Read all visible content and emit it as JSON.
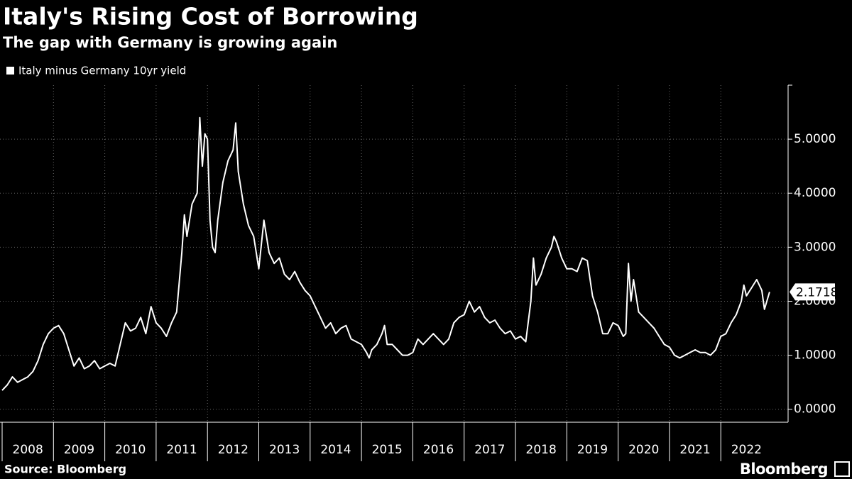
{
  "chart_data": {
    "type": "line",
    "title": "Italy's Rising Cost of Borrowing",
    "subtitle": "The gap with Germany is growing again",
    "source": "Source: Bloomberg",
    "brand": "Bloomberg",
    "x": [
      2008.0,
      2008.1,
      2008.2,
      2008.3,
      2008.4,
      2008.5,
      2008.6,
      2008.7,
      2008.8,
      2008.9,
      2009.0,
      2009.1,
      2009.2,
      2009.3,
      2009.4,
      2009.5,
      2009.6,
      2009.7,
      2009.8,
      2009.9,
      2010.0,
      2010.1,
      2010.2,
      2010.3,
      2010.4,
      2010.5,
      2010.6,
      2010.7,
      2010.8,
      2010.9,
      2011.0,
      2011.1,
      2011.2,
      2011.3,
      2011.4,
      2011.5,
      2011.55,
      2011.6,
      2011.7,
      2011.8,
      2011.85,
      2011.9,
      2011.95,
      2012.0,
      2012.05,
      2012.1,
      2012.15,
      2012.2,
      2012.3,
      2012.4,
      2012.5,
      2012.55,
      2012.6,
      2012.7,
      2012.8,
      2012.9,
      2013.0,
      2013.1,
      2013.2,
      2013.3,
      2013.4,
      2013.5,
      2013.6,
      2013.7,
      2013.8,
      2013.9,
      2014.0,
      2014.1,
      2014.2,
      2014.3,
      2014.4,
      2014.5,
      2014.6,
      2014.7,
      2014.8,
      2014.9,
      2015.0,
      2015.1,
      2015.15,
      2015.2,
      2015.3,
      2015.4,
      2015.45,
      2015.5,
      2015.6,
      2015.7,
      2015.8,
      2015.9,
      2016.0,
      2016.1,
      2016.2,
      2016.3,
      2016.4,
      2016.5,
      2016.6,
      2016.7,
      2016.8,
      2016.9,
      2017.0,
      2017.1,
      2017.2,
      2017.3,
      2017.4,
      2017.5,
      2017.6,
      2017.7,
      2017.8,
      2017.9,
      2018.0,
      2018.1,
      2018.2,
      2018.3,
      2018.35,
      2018.4,
      2018.5,
      2018.6,
      2018.7,
      2018.75,
      2018.8,
      2018.9,
      2019.0,
      2019.1,
      2019.2,
      2019.3,
      2019.4,
      2019.5,
      2019.6,
      2019.7,
      2019.8,
      2019.9,
      2020.0,
      2020.1,
      2020.15,
      2020.2,
      2020.25,
      2020.3,
      2020.35,
      2020.4,
      2020.5,
      2020.6,
      2020.7,
      2020.8,
      2020.9,
      2021.0,
      2021.1,
      2021.2,
      2021.3,
      2021.4,
      2021.5,
      2021.6,
      2021.7,
      2021.8,
      2021.9,
      2022.0,
      2022.1,
      2022.2,
      2022.3,
      2022.4,
      2022.45,
      2022.5,
      2022.6,
      2022.7,
      2022.8,
      2022.85,
      2022.95
    ],
    "series": [
      {
        "name": "Italy minus Germany 10yr yield",
        "color": "#ffffff",
        "values": [
          0.35,
          0.45,
          0.6,
          0.5,
          0.55,
          0.6,
          0.7,
          0.9,
          1.2,
          1.4,
          1.5,
          1.55,
          1.4,
          1.1,
          0.8,
          0.95,
          0.75,
          0.8,
          0.9,
          0.75,
          0.8,
          0.85,
          0.8,
          1.2,
          1.6,
          1.45,
          1.5,
          1.7,
          1.4,
          1.9,
          1.6,
          1.5,
          1.35,
          1.6,
          1.8,
          2.9,
          3.6,
          3.2,
          3.8,
          4.0,
          5.4,
          4.5,
          5.1,
          5.0,
          3.5,
          3.0,
          2.9,
          3.5,
          4.2,
          4.6,
          4.8,
          5.3,
          4.4,
          3.8,
          3.4,
          3.2,
          2.6,
          3.5,
          2.9,
          2.7,
          2.8,
          2.5,
          2.4,
          2.55,
          2.35,
          2.2,
          2.1,
          1.9,
          1.7,
          1.5,
          1.6,
          1.4,
          1.5,
          1.55,
          1.3,
          1.25,
          1.2,
          1.05,
          0.95,
          1.1,
          1.2,
          1.4,
          1.55,
          1.2,
          1.2,
          1.1,
          1.0,
          1.0,
          1.05,
          1.3,
          1.2,
          1.3,
          1.4,
          1.3,
          1.2,
          1.3,
          1.6,
          1.7,
          1.75,
          2.0,
          1.8,
          1.9,
          1.7,
          1.6,
          1.65,
          1.5,
          1.4,
          1.45,
          1.3,
          1.35,
          1.25,
          2.0,
          2.8,
          2.3,
          2.5,
          2.8,
          3.0,
          3.2,
          3.1,
          2.8,
          2.6,
          2.6,
          2.55,
          2.8,
          2.75,
          2.1,
          1.8,
          1.4,
          1.4,
          1.6,
          1.55,
          1.35,
          1.4,
          2.7,
          2.0,
          2.4,
          2.1,
          1.8,
          1.7,
          1.6,
          1.5,
          1.35,
          1.2,
          1.15,
          1.0,
          0.95,
          1.0,
          1.05,
          1.1,
          1.05,
          1.05,
          1.0,
          1.1,
          1.35,
          1.4,
          1.6,
          1.75,
          2.0,
          2.3,
          2.1,
          2.25,
          2.4,
          2.2,
          1.85,
          2.1718
        ],
        "end_label": "2.1718"
      }
    ],
    "xlim": [
      2008,
      2023
    ],
    "xticks": [
      2008,
      2009,
      2010,
      2011,
      2012,
      2013,
      2014,
      2015,
      2016,
      2017,
      2018,
      2019,
      2020,
      2021,
      2022
    ],
    "ylim": [
      -0.24,
      6.0
    ],
    "yticks": [
      {
        "value": 0,
        "label": "0.0000"
      },
      {
        "value": 1,
        "label": "1.0000"
      },
      {
        "value": 2,
        "label": "2.0000"
      },
      {
        "value": 3,
        "label": "3.0000"
      },
      {
        "value": 4,
        "label": "4.0000"
      },
      {
        "value": 5,
        "label": "5.0000"
      }
    ],
    "grid": true
  }
}
